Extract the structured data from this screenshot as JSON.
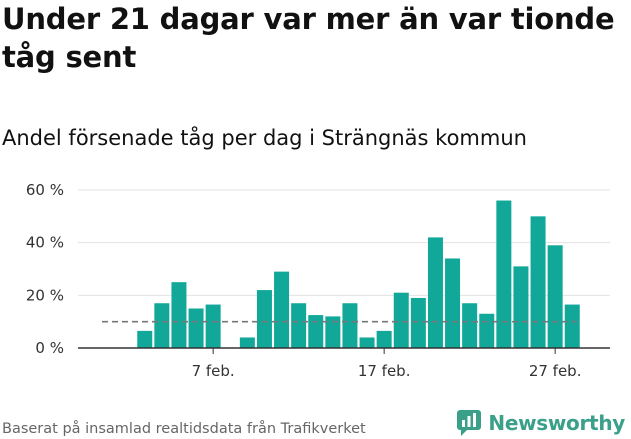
{
  "header": {
    "title": "Under 21 dagar var mer än var tionde tåg sent",
    "subtitle": "Andel försenade tåg per dag i Strängnäs kommun"
  },
  "footer": {
    "source": "Baserat på insamlad realtidsdata från Trafikverket",
    "brand": "Newsworthy"
  },
  "colors": {
    "bar": "#11a89a",
    "reference_line": "#777777",
    "grid": "#e3e3e3",
    "axis": "#333333",
    "brand": "#3aa089"
  },
  "chart_data": {
    "type": "bar",
    "title": "",
    "xlabel": "",
    "ylabel": "",
    "unit": "%",
    "ylim": [
      0,
      60
    ],
    "yticks": [
      0,
      20,
      40,
      60
    ],
    "ytick_labels": [
      "0 %",
      "20 %",
      "40 %",
      "60 %"
    ],
    "grid": true,
    "legend": "none",
    "categories": [
      "1 feb.",
      "2 feb.",
      "3 feb.",
      "4 feb.",
      "5 feb.",
      "6 feb.",
      "7 feb.",
      "8 feb.",
      "9 feb.",
      "10 feb.",
      "11 feb.",
      "12 feb.",
      "13 feb.",
      "14 feb.",
      "15 feb.",
      "16 feb.",
      "17 feb.",
      "18 feb.",
      "19 feb.",
      "20 feb.",
      "21 feb.",
      "22 feb.",
      "23 feb.",
      "24 feb.",
      "25 feb.",
      "26 feb.",
      "27 feb.",
      "28 feb."
    ],
    "values": [
      null,
      null,
      6.5,
      17,
      25,
      15,
      16.5,
      0,
      4,
      22,
      29,
      17,
      12.5,
      12,
      17,
      4,
      6.5,
      21,
      19,
      42,
      34,
      17,
      13,
      56,
      31,
      50,
      39,
      16.5
    ],
    "xtick_labels": [
      {
        "category": "7 feb.",
        "label": "7 feb."
      },
      {
        "category": "17 feb.",
        "label": "17 feb."
      },
      {
        "category": "27 feb.",
        "label": "27 feb."
      }
    ],
    "reference_line": {
      "value": 10
    }
  }
}
